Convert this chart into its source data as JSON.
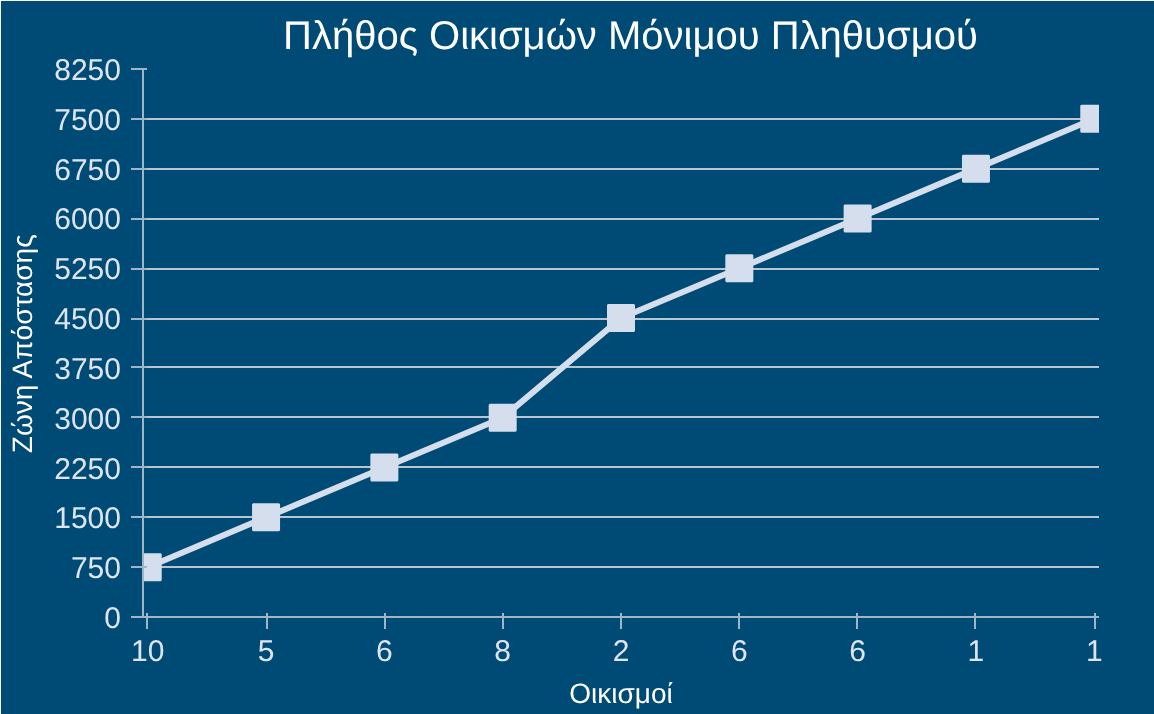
{
  "chart_data": {
    "type": "line",
    "title": "Πλήθος Οικισμών Μόνιμου Πληθυσμού",
    "xlabel": "Οικισμοί",
    "ylabel": "Ζώνη Απόστασης",
    "categories": [
      "10",
      "5",
      "6",
      "8",
      "2",
      "6",
      "6",
      "1",
      "1"
    ],
    "series": [
      {
        "color": "#d4deec",
        "values": [
          750,
          1500,
          2250,
          3000,
          4500,
          5250,
          6000,
          6750,
          7500
        ]
      }
    ],
    "ylim": [
      0,
      8250
    ],
    "yticks": [
      0,
      750,
      1500,
      2250,
      3000,
      3750,
      4500,
      5250,
      6000,
      6750,
      7500,
      8250
    ],
    "grid": "y",
    "marker": "square",
    "line_style": "solid"
  }
}
